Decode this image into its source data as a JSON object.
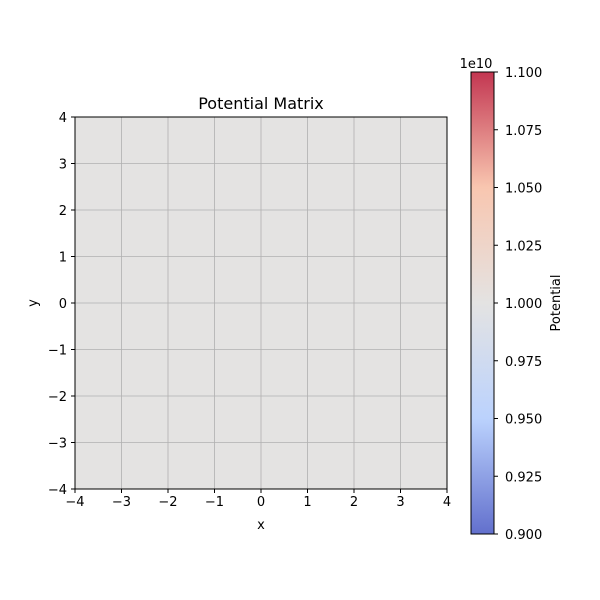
{
  "chart_data": {
    "type": "heatmap",
    "title": "Potential Matrix",
    "xlabel": "x",
    "ylabel": "y",
    "xlim": [
      -4,
      4
    ],
    "ylim": [
      -4,
      4
    ],
    "x_ticks": [
      -4,
      -3,
      -2,
      -1,
      0,
      1,
      2,
      3,
      4
    ],
    "y_ticks": [
      -4,
      -3,
      -2,
      -1,
      0,
      1,
      2,
      3,
      4
    ],
    "x_tick_labels": [
      "−4",
      "−3",
      "−2",
      "−1",
      "0",
      "1",
      "2",
      "3",
      "4"
    ],
    "y_tick_labels": [
      "−4",
      "−3",
      "−2",
      "−1",
      "0",
      "1",
      "2",
      "3",
      "4"
    ],
    "grid": true,
    "field_value": 10000000000,
    "field_color": "#dddcdb",
    "field_alpha": 0.8,
    "colormap": "coolwarm",
    "colormap_low": "#3b4cc0",
    "colormap_mid": "#dddcdb",
    "colormap_high": "#b40426",
    "colorbar": {
      "label": "Potential",
      "offset_text": "1e10",
      "range": [
        0.9,
        1.1
      ],
      "ticks": [
        0.9,
        0.925,
        0.95,
        0.975,
        1.0,
        1.025,
        1.05,
        1.075,
        1.1
      ],
      "tick_labels": [
        "0.900",
        "0.925",
        "0.950",
        "0.975",
        "1.000",
        "1.025",
        "1.050",
        "1.075",
        "1.100"
      ]
    }
  }
}
